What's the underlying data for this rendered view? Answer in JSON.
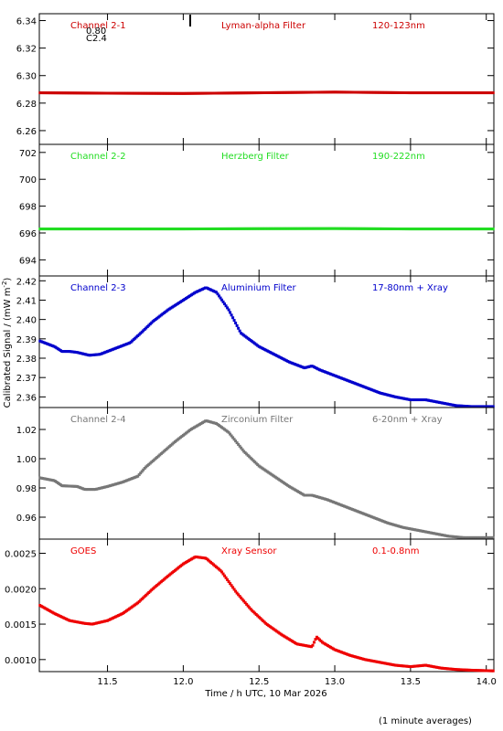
{
  "ylabel": "Calibrated Signal / (mW m",
  "ylabel_sup": "-2",
  "ylabel_close": ")",
  "xlabel": "Time / h UTC, 10 Mar 2026",
  "footnote": "(1 minute averages)",
  "x_ticks": [
    "11.5",
    "12.0",
    "12.5",
    "13.0",
    "13.5",
    "14.0"
  ],
  "annotations": [
    "0.80",
    "C2.4"
  ],
  "chart_data": [
    {
      "type": "scatter",
      "name": "Channel 2-1",
      "filter": "Lyman-alpha Filter",
      "band": "120-123nm",
      "color": "#cc0000",
      "xlim": [
        11.05,
        14.05
      ],
      "ylim": [
        6.25,
        6.345
      ],
      "y_ticks": [
        6.26,
        6.28,
        6.3,
        6.32,
        6.34
      ],
      "y_tick_decimals": 2,
      "points": [
        [
          11.05,
          6.2875
        ],
        [
          11.5,
          6.2872
        ],
        [
          12.0,
          6.287
        ],
        [
          12.5,
          6.2875
        ],
        [
          13.0,
          6.288
        ],
        [
          13.5,
          6.2875
        ],
        [
          14.05,
          6.2875
        ]
      ]
    },
    {
      "type": "scatter",
      "name": "Channel 2-2",
      "filter": "Herzberg Filter",
      "band": "190-222nm",
      "color": "#22dd22",
      "xlim": [
        11.05,
        14.05
      ],
      "ylim": [
        692.8,
        702.6
      ],
      "y_ticks": [
        694,
        696,
        698,
        700,
        702
      ],
      "y_tick_decimals": 0,
      "points": [
        [
          11.05,
          696.3
        ],
        [
          11.5,
          696.3
        ],
        [
          12.0,
          696.3
        ],
        [
          12.5,
          696.32
        ],
        [
          13.0,
          696.33
        ],
        [
          13.5,
          696.3
        ],
        [
          14.05,
          696.3
        ]
      ]
    },
    {
      "type": "scatter",
      "name": "Channel 2-3",
      "filter": "Aluminium Filter",
      "band": "17-80nm + Xray",
      "color": "#0000cc",
      "xlim": [
        11.05,
        14.05
      ],
      "ylim": [
        2.3545,
        2.4225
      ],
      "y_ticks": [
        2.36,
        2.37,
        2.38,
        2.39,
        2.4,
        2.41,
        2.42
      ],
      "y_tick_decimals": 2,
      "points": [
        [
          11.05,
          2.389
        ],
        [
          11.15,
          2.386
        ],
        [
          11.2,
          2.3835
        ],
        [
          11.25,
          2.3835
        ],
        [
          11.3,
          2.383
        ],
        [
          11.38,
          2.3815
        ],
        [
          11.45,
          2.382
        ],
        [
          11.55,
          2.385
        ],
        [
          11.65,
          2.388
        ],
        [
          11.72,
          2.393
        ],
        [
          11.8,
          2.399
        ],
        [
          11.9,
          2.405
        ],
        [
          12.0,
          2.41
        ],
        [
          12.08,
          2.414
        ],
        [
          12.15,
          2.4165
        ],
        [
          12.22,
          2.414
        ],
        [
          12.3,
          2.405
        ],
        [
          12.38,
          2.393
        ],
        [
          12.5,
          2.386
        ],
        [
          12.6,
          2.382
        ],
        [
          12.7,
          2.378
        ],
        [
          12.8,
          2.375
        ],
        [
          12.85,
          2.376
        ],
        [
          12.9,
          2.374
        ],
        [
          13.0,
          2.371
        ],
        [
          13.1,
          2.368
        ],
        [
          13.2,
          2.365
        ],
        [
          13.3,
          2.362
        ],
        [
          13.4,
          2.36
        ],
        [
          13.5,
          2.3585
        ],
        [
          13.6,
          2.3585
        ],
        [
          13.7,
          2.357
        ],
        [
          13.8,
          2.3555
        ],
        [
          13.9,
          2.355
        ],
        [
          14.05,
          2.355
        ]
      ]
    },
    {
      "type": "scatter",
      "name": "Channel 2-4",
      "filter": "Zirconium Filter",
      "band": "6-20nm + Xray",
      "color": "#777777",
      "xlim": [
        11.05,
        14.05
      ],
      "ylim": [
        0.945,
        1.035
      ],
      "y_ticks": [
        0.96,
        0.98,
        1.0,
        1.02
      ],
      "y_tick_decimals": 2,
      "points": [
        [
          11.05,
          0.987
        ],
        [
          11.15,
          0.985
        ],
        [
          11.2,
          0.9815
        ],
        [
          11.3,
          0.981
        ],
        [
          11.35,
          0.979
        ],
        [
          11.42,
          0.979
        ],
        [
          11.5,
          0.981
        ],
        [
          11.6,
          0.984
        ],
        [
          11.7,
          0.988
        ],
        [
          11.75,
          0.994
        ],
        [
          11.85,
          1.003
        ],
        [
          11.95,
          1.012
        ],
        [
          12.05,
          1.02
        ],
        [
          12.15,
          1.026
        ],
        [
          12.22,
          1.024
        ],
        [
          12.3,
          1.018
        ],
        [
          12.4,
          1.005
        ],
        [
          12.5,
          0.995
        ],
        [
          12.6,
          0.988
        ],
        [
          12.7,
          0.981
        ],
        [
          12.8,
          0.975
        ],
        [
          12.85,
          0.975
        ],
        [
          12.95,
          0.972
        ],
        [
          13.05,
          0.968
        ],
        [
          13.15,
          0.964
        ],
        [
          13.25,
          0.96
        ],
        [
          13.35,
          0.956
        ],
        [
          13.45,
          0.953
        ],
        [
          13.55,
          0.951
        ],
        [
          13.65,
          0.949
        ],
        [
          13.75,
          0.947
        ],
        [
          13.85,
          0.946
        ],
        [
          14.05,
          0.946
        ]
      ]
    },
    {
      "type": "scatter",
      "name": "GOES",
      "filter": "Xray Sensor",
      "band": "0.1-0.8nm",
      "color": "#ee0000",
      "xlim": [
        11.05,
        14.05
      ],
      "ylim": [
        0.00083,
        0.0027
      ],
      "y_ticks": [
        0.001,
        0.0015,
        0.002,
        0.0025
      ],
      "y_tick_decimals": 4,
      "points": [
        [
          11.05,
          0.00177
        ],
        [
          11.15,
          0.00165
        ],
        [
          11.25,
          0.00155
        ],
        [
          11.35,
          0.00151
        ],
        [
          11.4,
          0.0015
        ],
        [
          11.5,
          0.00155
        ],
        [
          11.6,
          0.00165
        ],
        [
          11.7,
          0.0018
        ],
        [
          11.8,
          0.002
        ],
        [
          11.9,
          0.00218
        ],
        [
          12.0,
          0.00235
        ],
        [
          12.08,
          0.00245
        ],
        [
          12.15,
          0.00243
        ],
        [
          12.25,
          0.00225
        ],
        [
          12.35,
          0.00195
        ],
        [
          12.45,
          0.0017
        ],
        [
          12.55,
          0.0015
        ],
        [
          12.65,
          0.00135
        ],
        [
          12.75,
          0.00122
        ],
        [
          12.85,
          0.00118
        ],
        [
          12.88,
          0.00132
        ],
        [
          12.92,
          0.00124
        ],
        [
          13.0,
          0.00114
        ],
        [
          13.1,
          0.00106
        ],
        [
          13.2,
          0.001
        ],
        [
          13.3,
          0.00096
        ],
        [
          13.4,
          0.00092
        ],
        [
          13.5,
          0.0009
        ],
        [
          13.6,
          0.00092
        ],
        [
          13.7,
          0.00088
        ],
        [
          13.8,
          0.00086
        ],
        [
          13.9,
          0.00085
        ],
        [
          14.05,
          0.00084
        ]
      ]
    }
  ]
}
